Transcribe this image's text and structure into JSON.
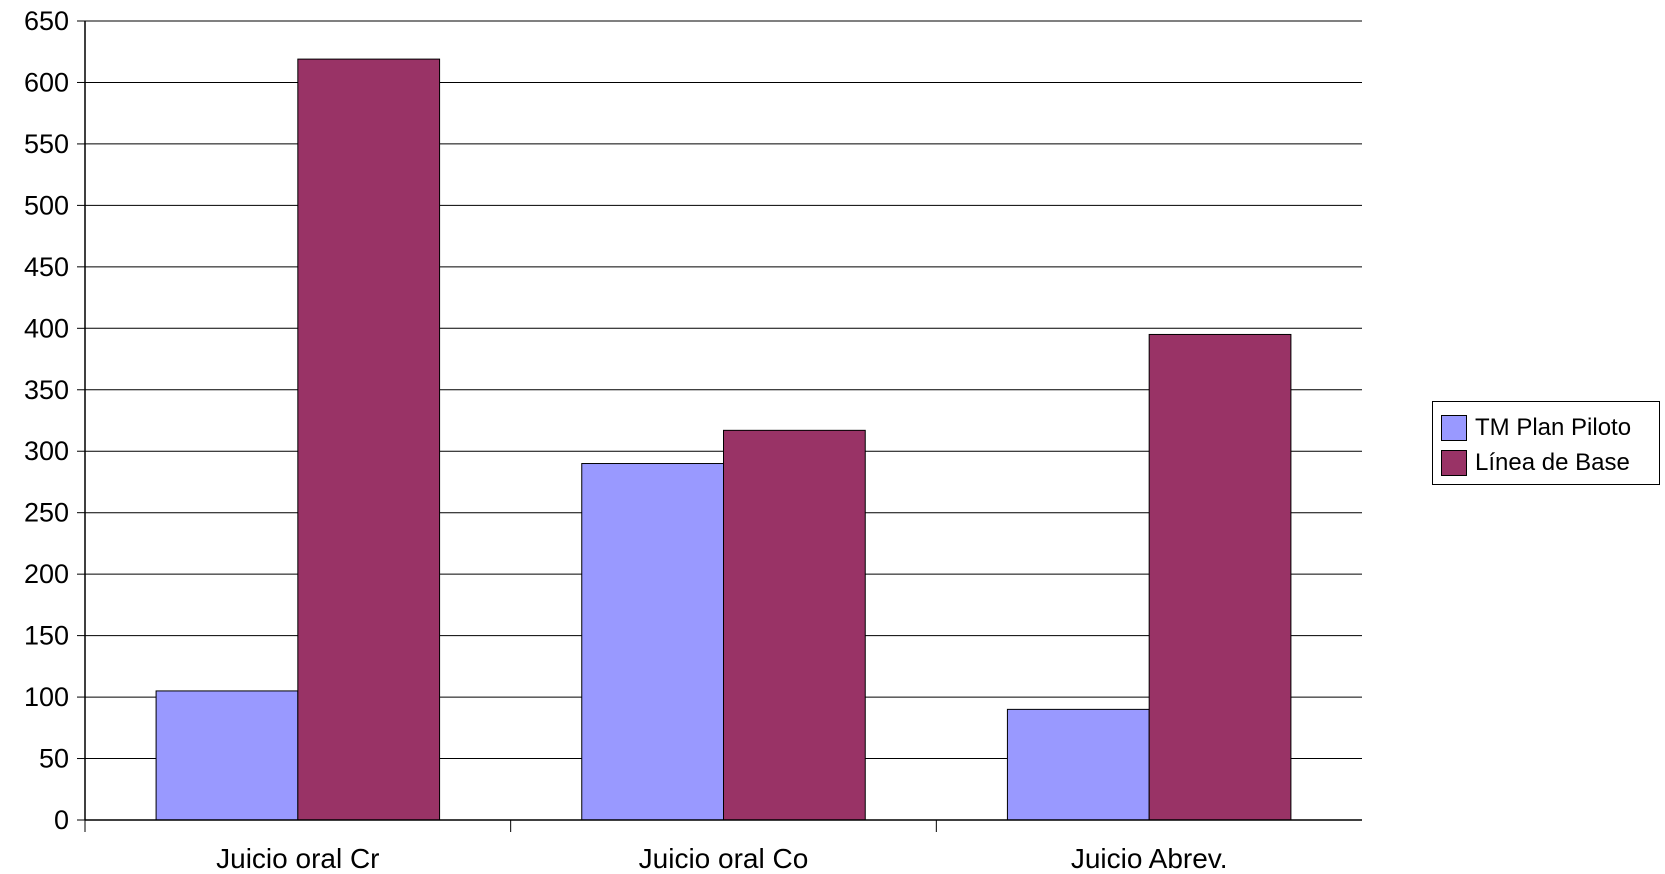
{
  "chart_data": {
    "type": "bar",
    "categories": [
      "Juicio oral Cr",
      "Juicio oral Co",
      "Juicio Abrev."
    ],
    "series": [
      {
        "name": "TM Plan Piloto",
        "values": [
          105,
          290,
          90
        ],
        "color": "#9999ff"
      },
      {
        "name": "Línea de Base",
        "values": [
          619,
          317,
          395
        ],
        "color": "#993366"
      }
    ],
    "ylim": [
      0,
      650
    ],
    "yticks": [
      "0",
      "50",
      "100",
      "150",
      "200",
      "250",
      "300",
      "350",
      "400",
      "450",
      "500",
      "550",
      "600",
      "650"
    ],
    "grid": true,
    "legend_position": "right"
  }
}
